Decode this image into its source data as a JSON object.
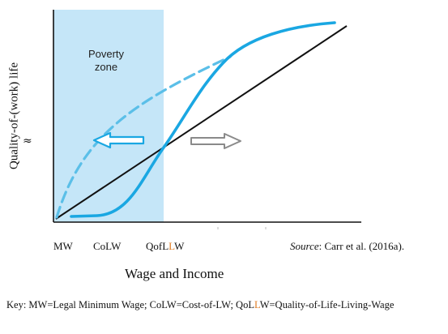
{
  "diagram": {
    "y_axis_label": "Quality-of-(work) life",
    "approx_symbol": "≈",
    "poverty_zone_line1": "Poverty",
    "poverty_zone_line2": "zone",
    "x_labels": {
      "mw": "MW",
      "colw": "CoLW",
      "qofllw_prefix": "QofL",
      "qofllw_highlight": "L",
      "qofllw_suffix": "W"
    },
    "x_axis_title": "Wage and Income",
    "source_label": "Source",
    "source_text": ": Carr et al. (2016a).",
    "key": {
      "prefix": "Key: MW=Legal Minimum Wage; CoLW=Cost-of-LW; QoL",
      "highlight": "L",
      "suffix": "W=Quality-of-Life-Living-Wage"
    },
    "colors": {
      "poverty_zone": "#c5e6f8",
      "curve": "#1aa7e2",
      "line": "#111111",
      "left_arrow": "#1aa7e2",
      "right_arrow": "#8a8a8a",
      "highlight": "#e07a1f"
    }
  }
}
